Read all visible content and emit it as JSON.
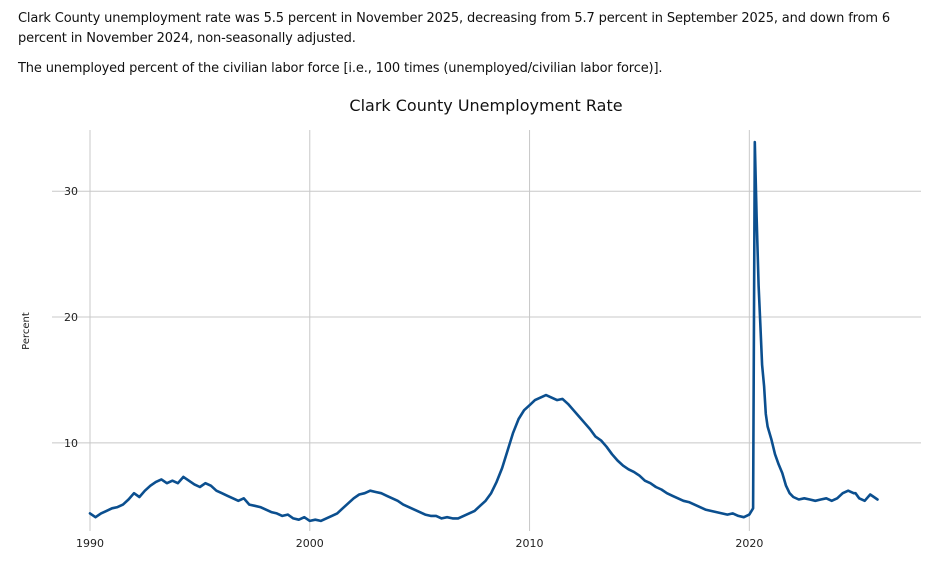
{
  "summary": {
    "line1": "Clark County unemployment rate was 5.5 percent in November 2025, decreasing from 5.7 percent in September 2025, and down from 6 percent in November 2024, non-seasonally adjusted.",
    "line2": "The unemployed percent of the civilian labor force [i.e., 100 times (unemployed/civilian labor force)]."
  },
  "chart_data": {
    "type": "line",
    "title": "Clark County Unemployment Rate",
    "xlabel": "",
    "ylabel": "Percent",
    "xlim": [
      1990,
      2025.9
    ],
    "ylim": [
      3.0,
      35.5
    ],
    "xticks": [
      1990,
      2000,
      2010,
      2020
    ],
    "yticks": [
      10,
      20,
      30
    ],
    "grid": true,
    "legend": "none",
    "line_color": "#0b4f8f",
    "grid_color": "#c8c8c8",
    "series": [
      {
        "values": [
          [
            1990.0,
            4.4
          ],
          [
            1990.25,
            4.1
          ],
          [
            1990.5,
            4.4
          ],
          [
            1990.75,
            4.6
          ],
          [
            1991.0,
            4.8
          ],
          [
            1991.25,
            4.9
          ],
          [
            1991.5,
            5.1
          ],
          [
            1991.75,
            5.5
          ],
          [
            1992.0,
            6.0
          ],
          [
            1992.25,
            5.7
          ],
          [
            1992.5,
            6.2
          ],
          [
            1992.75,
            6.6
          ],
          [
            1993.0,
            6.9
          ],
          [
            1993.25,
            7.1
          ],
          [
            1993.5,
            6.8
          ],
          [
            1993.75,
            7.0
          ],
          [
            1994.0,
            6.8
          ],
          [
            1994.25,
            7.3
          ],
          [
            1994.5,
            7.0
          ],
          [
            1994.75,
            6.7
          ],
          [
            1995.0,
            6.5
          ],
          [
            1995.25,
            6.8
          ],
          [
            1995.5,
            6.6
          ],
          [
            1995.75,
            6.2
          ],
          [
            1996.0,
            6.0
          ],
          [
            1996.25,
            5.8
          ],
          [
            1996.5,
            5.6
          ],
          [
            1996.75,
            5.4
          ],
          [
            1997.0,
            5.6
          ],
          [
            1997.25,
            5.1
          ],
          [
            1997.5,
            5.0
          ],
          [
            1997.75,
            4.9
          ],
          [
            1998.0,
            4.7
          ],
          [
            1998.25,
            4.5
          ],
          [
            1998.5,
            4.4
          ],
          [
            1998.75,
            4.2
          ],
          [
            1999.0,
            4.3
          ],
          [
            1999.25,
            4.0
          ],
          [
            1999.5,
            3.9
          ],
          [
            1999.75,
            4.1
          ],
          [
            2000.0,
            3.8
          ],
          [
            2000.25,
            3.9
          ],
          [
            2000.5,
            3.8
          ],
          [
            2000.75,
            4.0
          ],
          [
            2001.0,
            4.2
          ],
          [
            2001.25,
            4.4
          ],
          [
            2001.5,
            4.8
          ],
          [
            2001.75,
            5.2
          ],
          [
            2002.0,
            5.6
          ],
          [
            2002.25,
            5.9
          ],
          [
            2002.5,
            6.0
          ],
          [
            2002.75,
            6.2
          ],
          [
            2003.0,
            6.1
          ],
          [
            2003.25,
            6.0
          ],
          [
            2003.5,
            5.8
          ],
          [
            2003.75,
            5.6
          ],
          [
            2004.0,
            5.4
          ],
          [
            2004.25,
            5.1
          ],
          [
            2004.5,
            4.9
          ],
          [
            2004.75,
            4.7
          ],
          [
            2005.0,
            4.5
          ],
          [
            2005.25,
            4.3
          ],
          [
            2005.5,
            4.2
          ],
          [
            2005.75,
            4.2
          ],
          [
            2006.0,
            4.0
          ],
          [
            2006.25,
            4.1
          ],
          [
            2006.5,
            4.0
          ],
          [
            2006.75,
            4.0
          ],
          [
            2007.0,
            4.2
          ],
          [
            2007.25,
            4.4
          ],
          [
            2007.5,
            4.6
          ],
          [
            2007.75,
            5.0
          ],
          [
            2008.0,
            5.4
          ],
          [
            2008.25,
            6.0
          ],
          [
            2008.5,
            6.9
          ],
          [
            2008.75,
            8.0
          ],
          [
            2009.0,
            9.4
          ],
          [
            2009.25,
            10.8
          ],
          [
            2009.5,
            11.9
          ],
          [
            2009.75,
            12.6
          ],
          [
            2010.0,
            13.0
          ],
          [
            2010.25,
            13.4
          ],
          [
            2010.5,
            13.6
          ],
          [
            2010.75,
            13.8
          ],
          [
            2011.0,
            13.6
          ],
          [
            2011.25,
            13.4
          ],
          [
            2011.5,
            13.5
          ],
          [
            2011.75,
            13.1
          ],
          [
            2012.0,
            12.6
          ],
          [
            2012.25,
            12.1
          ],
          [
            2012.5,
            11.6
          ],
          [
            2012.75,
            11.1
          ],
          [
            2013.0,
            10.5
          ],
          [
            2013.25,
            10.2
          ],
          [
            2013.5,
            9.7
          ],
          [
            2013.75,
            9.1
          ],
          [
            2014.0,
            8.6
          ],
          [
            2014.25,
            8.2
          ],
          [
            2014.5,
            7.9
          ],
          [
            2014.75,
            7.7
          ],
          [
            2015.0,
            7.4
          ],
          [
            2015.25,
            7.0
          ],
          [
            2015.5,
            6.8
          ],
          [
            2015.75,
            6.5
          ],
          [
            2016.0,
            6.3
          ],
          [
            2016.25,
            6.0
          ],
          [
            2016.5,
            5.8
          ],
          [
            2016.75,
            5.6
          ],
          [
            2017.0,
            5.4
          ],
          [
            2017.25,
            5.3
          ],
          [
            2017.5,
            5.1
          ],
          [
            2017.75,
            4.9
          ],
          [
            2018.0,
            4.7
          ],
          [
            2018.25,
            4.6
          ],
          [
            2018.5,
            4.5
          ],
          [
            2018.75,
            4.4
          ],
          [
            2019.0,
            4.3
          ],
          [
            2019.25,
            4.4
          ],
          [
            2019.5,
            4.2
          ],
          [
            2019.75,
            4.1
          ],
          [
            2020.0,
            4.3
          ],
          [
            2020.17,
            4.8
          ],
          [
            2020.25,
            33.9
          ],
          [
            2020.33,
            28.0
          ],
          [
            2020.42,
            22.5
          ],
          [
            2020.5,
            19.5
          ],
          [
            2020.58,
            16.2
          ],
          [
            2020.67,
            14.5
          ],
          [
            2020.75,
            12.3
          ],
          [
            2020.83,
            11.3
          ],
          [
            2021.0,
            10.3
          ],
          [
            2021.17,
            9.1
          ],
          [
            2021.33,
            8.3
          ],
          [
            2021.5,
            7.6
          ],
          [
            2021.67,
            6.6
          ],
          [
            2021.83,
            6.0
          ],
          [
            2022.0,
            5.7
          ],
          [
            2022.25,
            5.5
          ],
          [
            2022.5,
            5.6
          ],
          [
            2022.75,
            5.5
          ],
          [
            2023.0,
            5.4
          ],
          [
            2023.25,
            5.5
          ],
          [
            2023.5,
            5.6
          ],
          [
            2023.75,
            5.4
          ],
          [
            2024.0,
            5.6
          ],
          [
            2024.25,
            6.0
          ],
          [
            2024.5,
            6.2
          ],
          [
            2024.75,
            6.0
          ],
          [
            2024.83,
            6.0
          ],
          [
            2025.0,
            5.6
          ],
          [
            2025.25,
            5.4
          ],
          [
            2025.5,
            5.9
          ],
          [
            2025.67,
            5.7
          ],
          [
            2025.83,
            5.5
          ]
        ]
      }
    ]
  }
}
